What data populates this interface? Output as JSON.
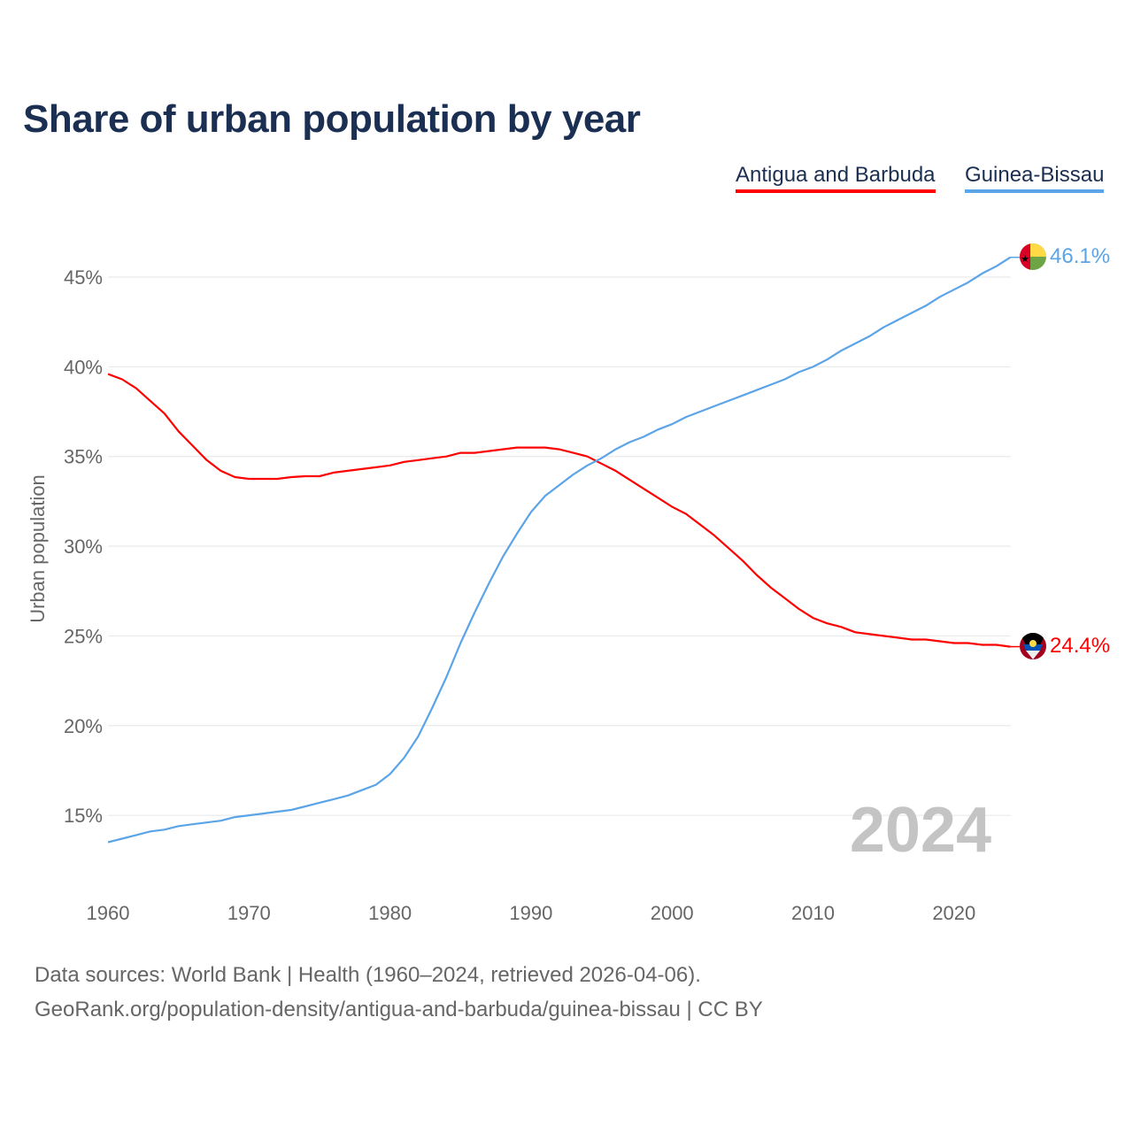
{
  "chart_data": {
    "type": "line",
    "title": "Share of urban population by year",
    "xlabel": "",
    "ylabel": "Urban population",
    "xlim": [
      1960,
      2024
    ],
    "ylim": [
      11,
      48
    ],
    "x_ticks": [
      1960,
      1970,
      1980,
      1990,
      2000,
      2010,
      2020
    ],
    "y_ticks": [
      15,
      20,
      25,
      30,
      35,
      40,
      45
    ],
    "y_tick_labels": [
      "15%",
      "20%",
      "25%",
      "30%",
      "35%",
      "40%",
      "45%"
    ],
    "grid": true,
    "legend_placement": "top-right",
    "watermark_year": "2024",
    "series": [
      {
        "name": "Antigua and Barbuda",
        "color": "#ff0000",
        "end_label": "24.4%",
        "flag": "antigua-and-barbuda-flag",
        "values": [
          39.6,
          39.3,
          38.8,
          38.1,
          37.4,
          36.4,
          35.6,
          34.8,
          34.2,
          33.85,
          33.75,
          33.75,
          33.75,
          33.85,
          33.9,
          33.9,
          34.1,
          34.2,
          34.3,
          34.4,
          34.5,
          34.7,
          34.8,
          34.9,
          35.0,
          35.2,
          35.2,
          35.3,
          35.4,
          35.5,
          35.5,
          35.5,
          35.4,
          35.2,
          35.0,
          34.6,
          34.2,
          33.7,
          33.2,
          32.7,
          32.2,
          31.8,
          31.2,
          30.6,
          29.9,
          29.2,
          28.4,
          27.7,
          27.1,
          26.5,
          26.0,
          25.7,
          25.5,
          25.2,
          25.1,
          25.0,
          24.9,
          24.8,
          24.8,
          24.7,
          24.6,
          24.6,
          24.5,
          24.5,
          24.4
        ]
      },
      {
        "name": "Guinea-Bissau",
        "color": "#5ba4e8",
        "end_label": "46.1%",
        "flag": "guinea-bissau-flag",
        "values": [
          13.5,
          13.7,
          13.9,
          14.1,
          14.2,
          14.4,
          14.5,
          14.6,
          14.7,
          14.9,
          15.0,
          15.1,
          15.2,
          15.3,
          15.5,
          15.7,
          15.9,
          16.1,
          16.4,
          16.7,
          17.3,
          18.2,
          19.4,
          21.0,
          22.7,
          24.6,
          26.3,
          27.9,
          29.4,
          30.7,
          31.9,
          32.8,
          33.4,
          34.0,
          34.5,
          34.9,
          35.4,
          35.8,
          36.1,
          36.5,
          36.8,
          37.2,
          37.5,
          37.8,
          38.1,
          38.4,
          38.7,
          39.0,
          39.3,
          39.7,
          40.0,
          40.4,
          40.9,
          41.3,
          41.7,
          42.2,
          42.6,
          43.0,
          43.4,
          43.9,
          44.3,
          44.7,
          45.2,
          45.6,
          46.1
        ]
      }
    ]
  },
  "footer": {
    "line1": "Data sources: World Bank | Health (1960–2024, retrieved 2026-04-06).",
    "line2": "GeoRank.org/population-density/antigua-and-barbuda/guinea-bissau | CC BY"
  }
}
